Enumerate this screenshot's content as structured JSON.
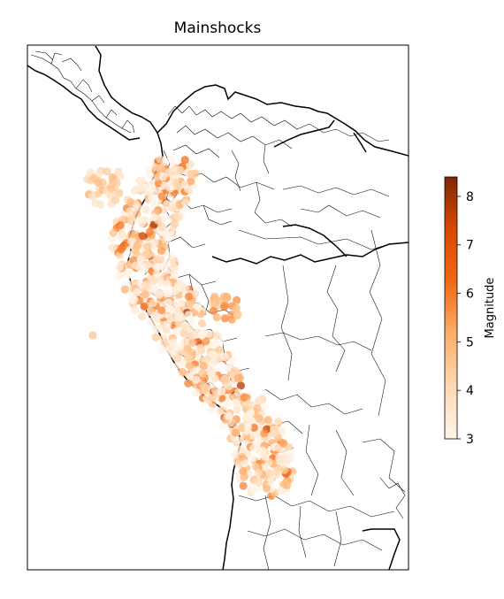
{
  "title": "Mainshocks",
  "colorbar": {
    "label": "Magnitude",
    "min": 3,
    "max": 8.4,
    "ticks": [
      "3",
      "4",
      "5",
      "6",
      "7",
      "8"
    ],
    "colormap": "Oranges",
    "color_low": "#fff5eb",
    "color_high": "#7f2704"
  },
  "map": {
    "region": "Northwestern South America and Central America",
    "features": [
      "country-borders",
      "administrative-borders",
      "coastline",
      "rivers"
    ],
    "axes_ticks": false
  },
  "chart_data": {
    "type": "scatter",
    "title": "Mainshocks",
    "colorbar_label": "Magnitude",
    "color_range": [
      3,
      8.4
    ],
    "points_description": "Dense band of earthquake epicenters along the Andes from Colombia through Ecuador and Peru into northern Chile/Bolivia; most magnitudes 3–5, scattered events 6–8 near Colombia/Ecuador coast and northern Peru"
  }
}
